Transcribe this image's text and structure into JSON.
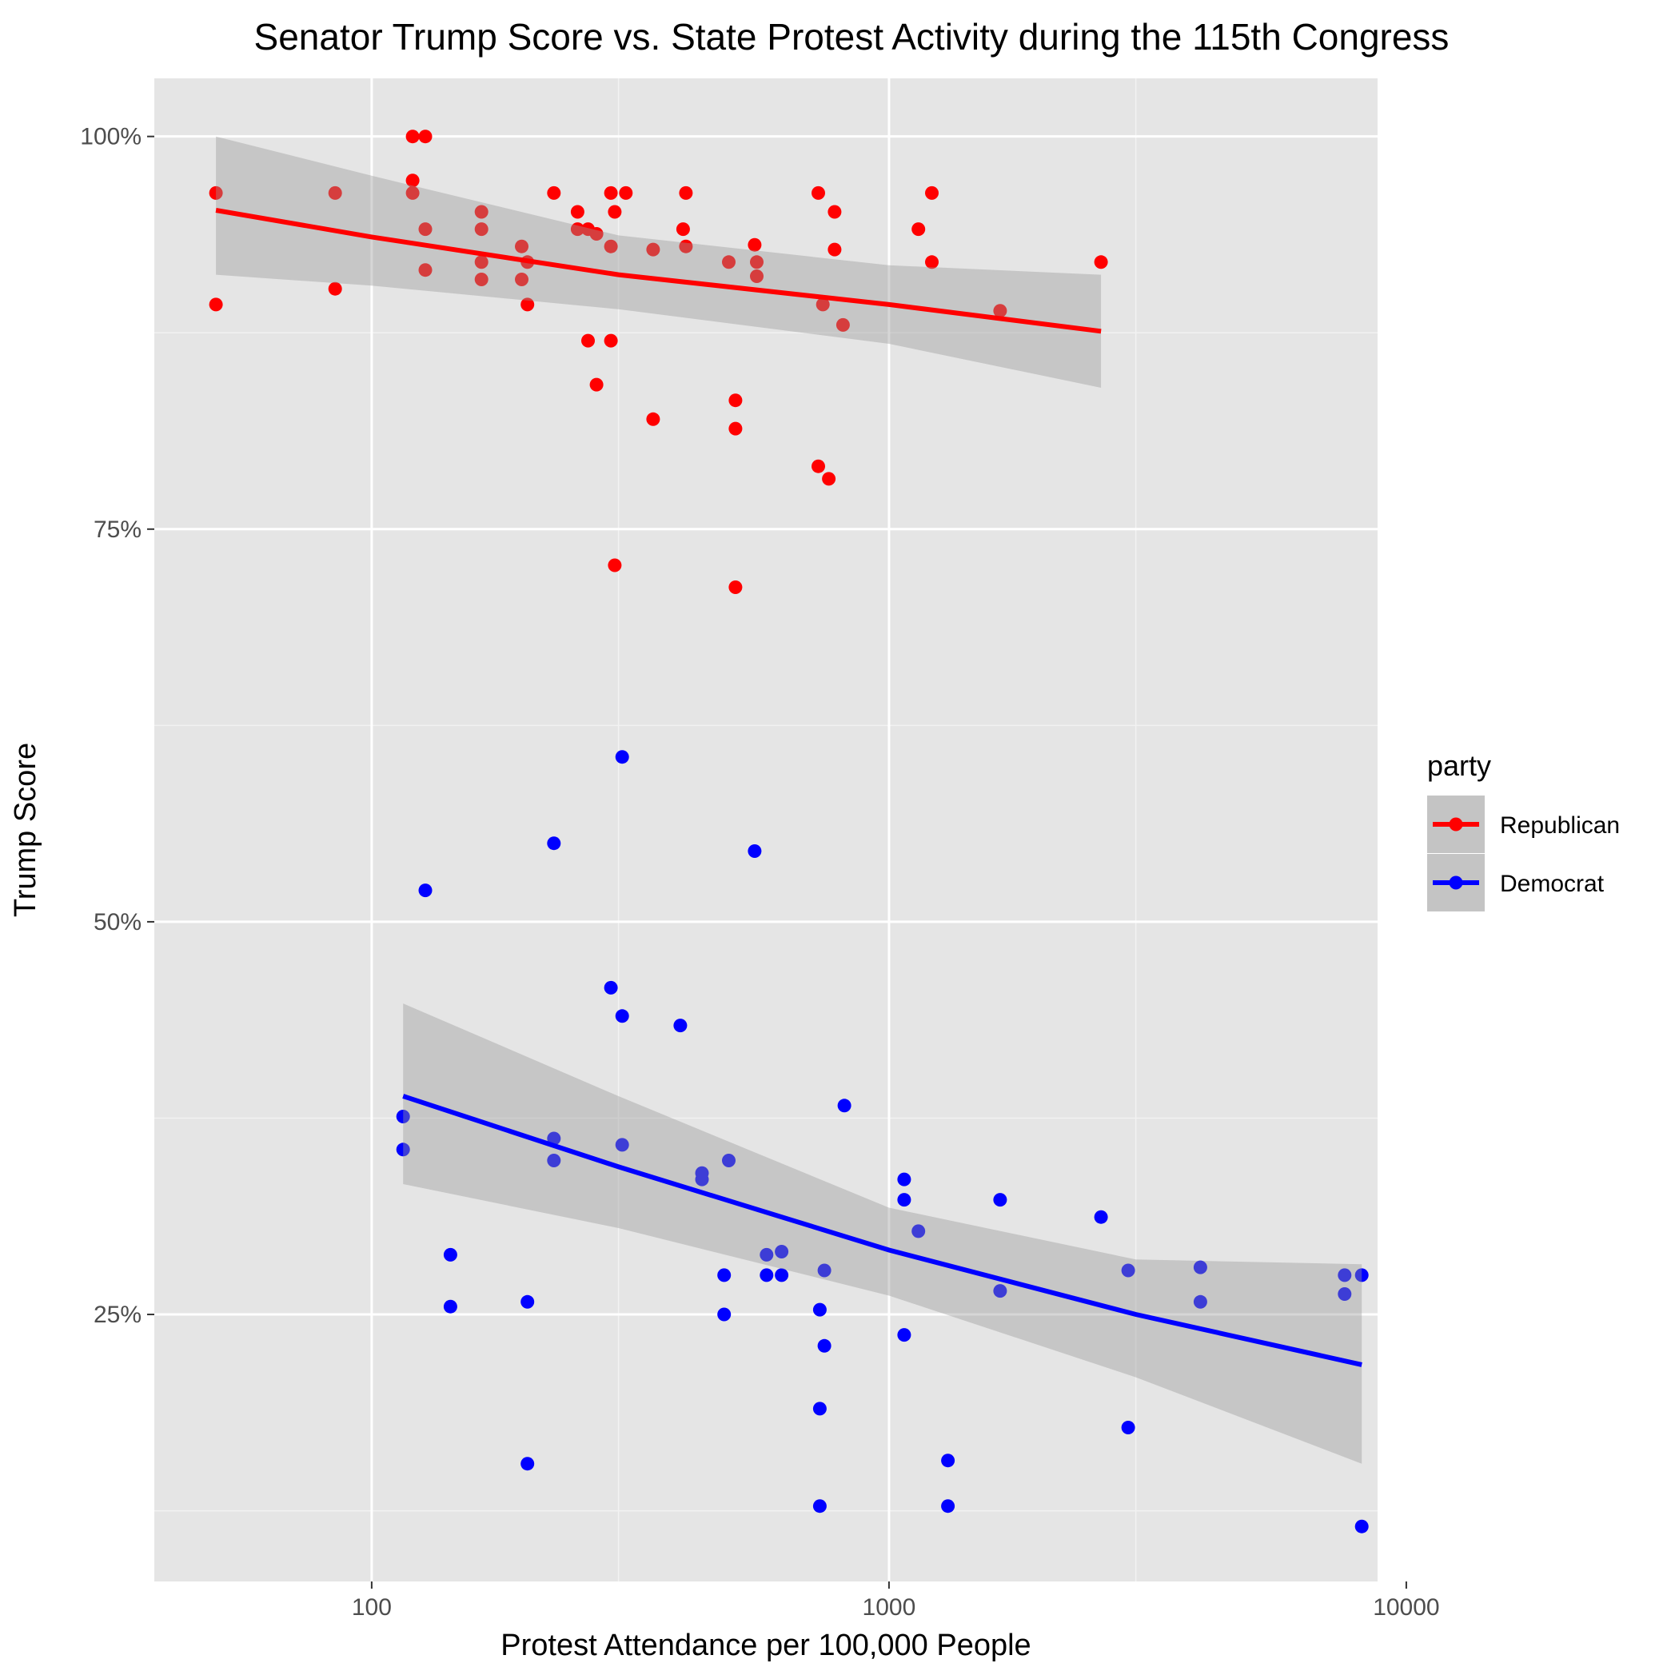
{
  "chart_data": {
    "type": "scatter",
    "title": "Senator Trump Score vs. State Protest Activity during the 115th Congress",
    "xlabel": "Protest Attendance per 100,000 People",
    "ylabel": "Trump Score",
    "x_scale": "log10",
    "xlim": [
      38,
      8800
    ],
    "ylim": [
      0.08,
      1.037
    ],
    "x_ticks": [
      100,
      1000,
      10000
    ],
    "x_tick_labels": [
      "100",
      "1000",
      "10000"
    ],
    "x_minor_ticks": [
      300,
      3000
    ],
    "y_ticks": [
      0.25,
      0.5,
      0.75,
      1.0
    ],
    "y_tick_labels": [
      "25%",
      "50%",
      "75%",
      "100%"
    ],
    "y_minor_ticks": [
      0.125,
      0.375,
      0.625,
      0.875
    ],
    "grid": true,
    "legend": {
      "title": "party",
      "position": "right"
    },
    "series": [
      {
        "name": "Republican",
        "color": "#ff0000",
        "points": [
          [
            50,
            0.964
          ],
          [
            50,
            0.893
          ],
          [
            85,
            0.964
          ],
          [
            85,
            0.903
          ],
          [
            120,
            1.0
          ],
          [
            127,
            1.0
          ],
          [
            120,
            0.972
          ],
          [
            120,
            0.964
          ],
          [
            127,
            0.941
          ],
          [
            127,
            0.915
          ],
          [
            163,
            0.952
          ],
          [
            163,
            0.941
          ],
          [
            163,
            0.92
          ],
          [
            163,
            0.909
          ],
          [
            195,
            0.93
          ],
          [
            195,
            0.909
          ],
          [
            200,
            0.92
          ],
          [
            200,
            0.893
          ],
          [
            225,
            0.964
          ],
          [
            250,
            0.952
          ],
          [
            250,
            0.941
          ],
          [
            262,
            0.941
          ],
          [
            262,
            0.87
          ],
          [
            272,
            0.938
          ],
          [
            272,
            0.842
          ],
          [
            290,
            0.964
          ],
          [
            290,
            0.93
          ],
          [
            290,
            0.87
          ],
          [
            295,
            0.952
          ],
          [
            295,
            0.727
          ],
          [
            310,
            0.964
          ],
          [
            350,
            0.928
          ],
          [
            350,
            0.82
          ],
          [
            400,
            0.941
          ],
          [
            405,
            0.964
          ],
          [
            405,
            0.93
          ],
          [
            490,
            0.92
          ],
          [
            505,
            0.832
          ],
          [
            505,
            0.814
          ],
          [
            505,
            0.713
          ],
          [
            550,
            0.931
          ],
          [
            555,
            0.92
          ],
          [
            555,
            0.911
          ],
          [
            730,
            0.964
          ],
          [
            730,
            0.79
          ],
          [
            745,
            0.893
          ],
          [
            765,
            0.782
          ],
          [
            785,
            0.952
          ],
          [
            785,
            0.928
          ],
          [
            815,
            0.88
          ],
          [
            1140,
            0.941
          ],
          [
            1210,
            0.964
          ],
          [
            1210,
            0.92
          ],
          [
            1640,
            0.889
          ],
          [
            2570,
            0.92
          ]
        ],
        "trend": [
          [
            50,
            0.953
          ],
          [
            100,
            0.936
          ],
          [
            300,
            0.912
          ],
          [
            1000,
            0.893
          ],
          [
            2570,
            0.876
          ]
        ],
        "ci_upper": [
          [
            50,
            1.0
          ],
          [
            100,
            0.975
          ],
          [
            300,
            0.937
          ],
          [
            1000,
            0.918
          ],
          [
            2570,
            0.912
          ]
        ],
        "ci_lower": [
          [
            50,
            0.912
          ],
          [
            100,
            0.905
          ],
          [
            300,
            0.89
          ],
          [
            1000,
            0.868
          ],
          [
            2570,
            0.84
          ]
        ]
      },
      {
        "name": "Democrat",
        "color": "#0000ff",
        "points": [
          [
            115,
            0.376
          ],
          [
            115,
            0.355
          ],
          [
            127,
            0.52
          ],
          [
            142,
            0.288
          ],
          [
            142,
            0.255
          ],
          [
            200,
            0.258
          ],
          [
            200,
            0.155
          ],
          [
            225,
            0.55
          ],
          [
            225,
            0.362
          ],
          [
            225,
            0.348
          ],
          [
            290,
            0.458
          ],
          [
            305,
            0.605
          ],
          [
            305,
            0.44
          ],
          [
            305,
            0.358
          ],
          [
            395,
            0.434
          ],
          [
            435,
            0.34
          ],
          [
            435,
            0.336
          ],
          [
            480,
            0.275
          ],
          [
            480,
            0.25
          ],
          [
            490,
            0.348
          ],
          [
            550,
            0.545
          ],
          [
            580,
            0.288
          ],
          [
            580,
            0.275
          ],
          [
            620,
            0.29
          ],
          [
            620,
            0.275
          ],
          [
            735,
            0.253
          ],
          [
            735,
            0.19
          ],
          [
            735,
            0.128
          ],
          [
            750,
            0.278
          ],
          [
            750,
            0.23
          ],
          [
            820,
            0.383
          ],
          [
            1070,
            0.336
          ],
          [
            1070,
            0.323
          ],
          [
            1070,
            0.237
          ],
          [
            1140,
            0.303
          ],
          [
            1300,
            0.157
          ],
          [
            1300,
            0.128
          ],
          [
            1640,
            0.323
          ],
          [
            1640,
            0.265
          ],
          [
            2570,
            0.312
          ],
          [
            2900,
            0.278
          ],
          [
            2900,
            0.178
          ],
          [
            4000,
            0.28
          ],
          [
            4000,
            0.258
          ],
          [
            7600,
            0.275
          ],
          [
            7600,
            0.263
          ],
          [
            8200,
            0.275
          ],
          [
            8200,
            0.115
          ]
        ],
        "trend": [
          [
            115,
            0.389
          ],
          [
            300,
            0.344
          ],
          [
            1000,
            0.291
          ],
          [
            3000,
            0.25
          ],
          [
            8200,
            0.218
          ]
        ],
        "ci_upper": [
          [
            115,
            0.448
          ],
          [
            300,
            0.389
          ],
          [
            1000,
            0.318
          ],
          [
            3000,
            0.285
          ],
          [
            8200,
            0.282
          ]
        ],
        "ci_lower": [
          [
            115,
            0.333
          ],
          [
            300,
            0.305
          ],
          [
            1000,
            0.262
          ],
          [
            3000,
            0.21
          ],
          [
            8200,
            0.155
          ]
        ]
      }
    ]
  }
}
